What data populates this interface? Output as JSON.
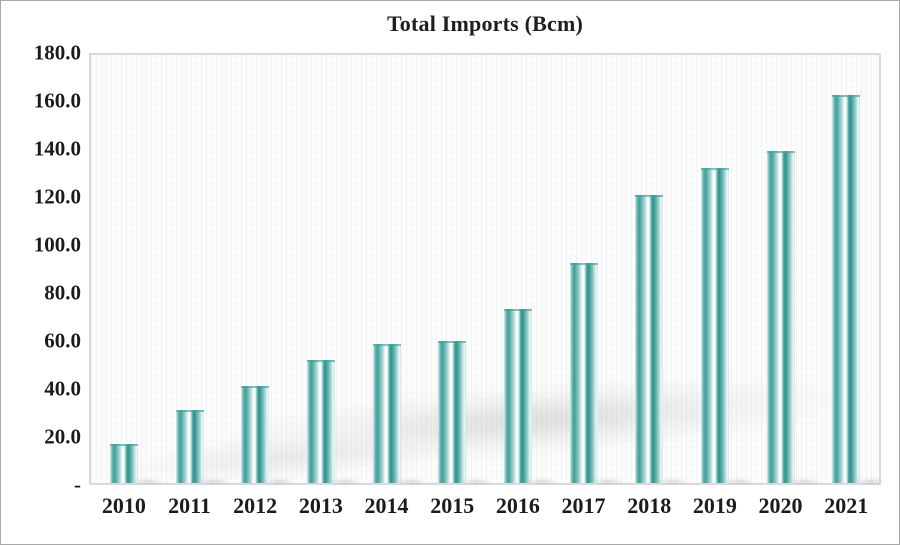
{
  "chart_data": {
    "type": "bar",
    "title": "Total Imports (Bcm)",
    "categories": [
      "2010",
      "2011",
      "2012",
      "2013",
      "2014",
      "2015",
      "2016",
      "2017",
      "2018",
      "2019",
      "2020",
      "2021"
    ],
    "values": [
      16.6,
      30.9,
      40.9,
      51.6,
      58.4,
      59.9,
      73.2,
      92.4,
      121.3,
      132.6,
      139.8,
      163.2
    ],
    "xlabel": "",
    "ylabel": "",
    "ylim": [
      0,
      180
    ],
    "y_ticks": [
      {
        "label": "180.0",
        "value": 180
      },
      {
        "label": "160.0",
        "value": 160
      },
      {
        "label": "140.0",
        "value": 140
      },
      {
        "label": "120.0",
        "value": 120
      },
      {
        "label": "100.0",
        "value": 100
      },
      {
        "label": "80.0",
        "value": 80
      },
      {
        "label": "60.0",
        "value": 60
      },
      {
        "label": "40.0",
        "value": 40
      },
      {
        "label": "20.0",
        "value": 20
      },
      {
        "label": "-",
        "value": 0
      }
    ],
    "grid": "off",
    "legend_position": "none",
    "bar_style": "cylinder-gradient",
    "colors": {
      "bar_teal": "#2f948e",
      "bar_highlight": "#ffffff",
      "plot_border": "#dadada",
      "text": "#1c1c1c",
      "figure_border": "#a8a8a8"
    }
  }
}
